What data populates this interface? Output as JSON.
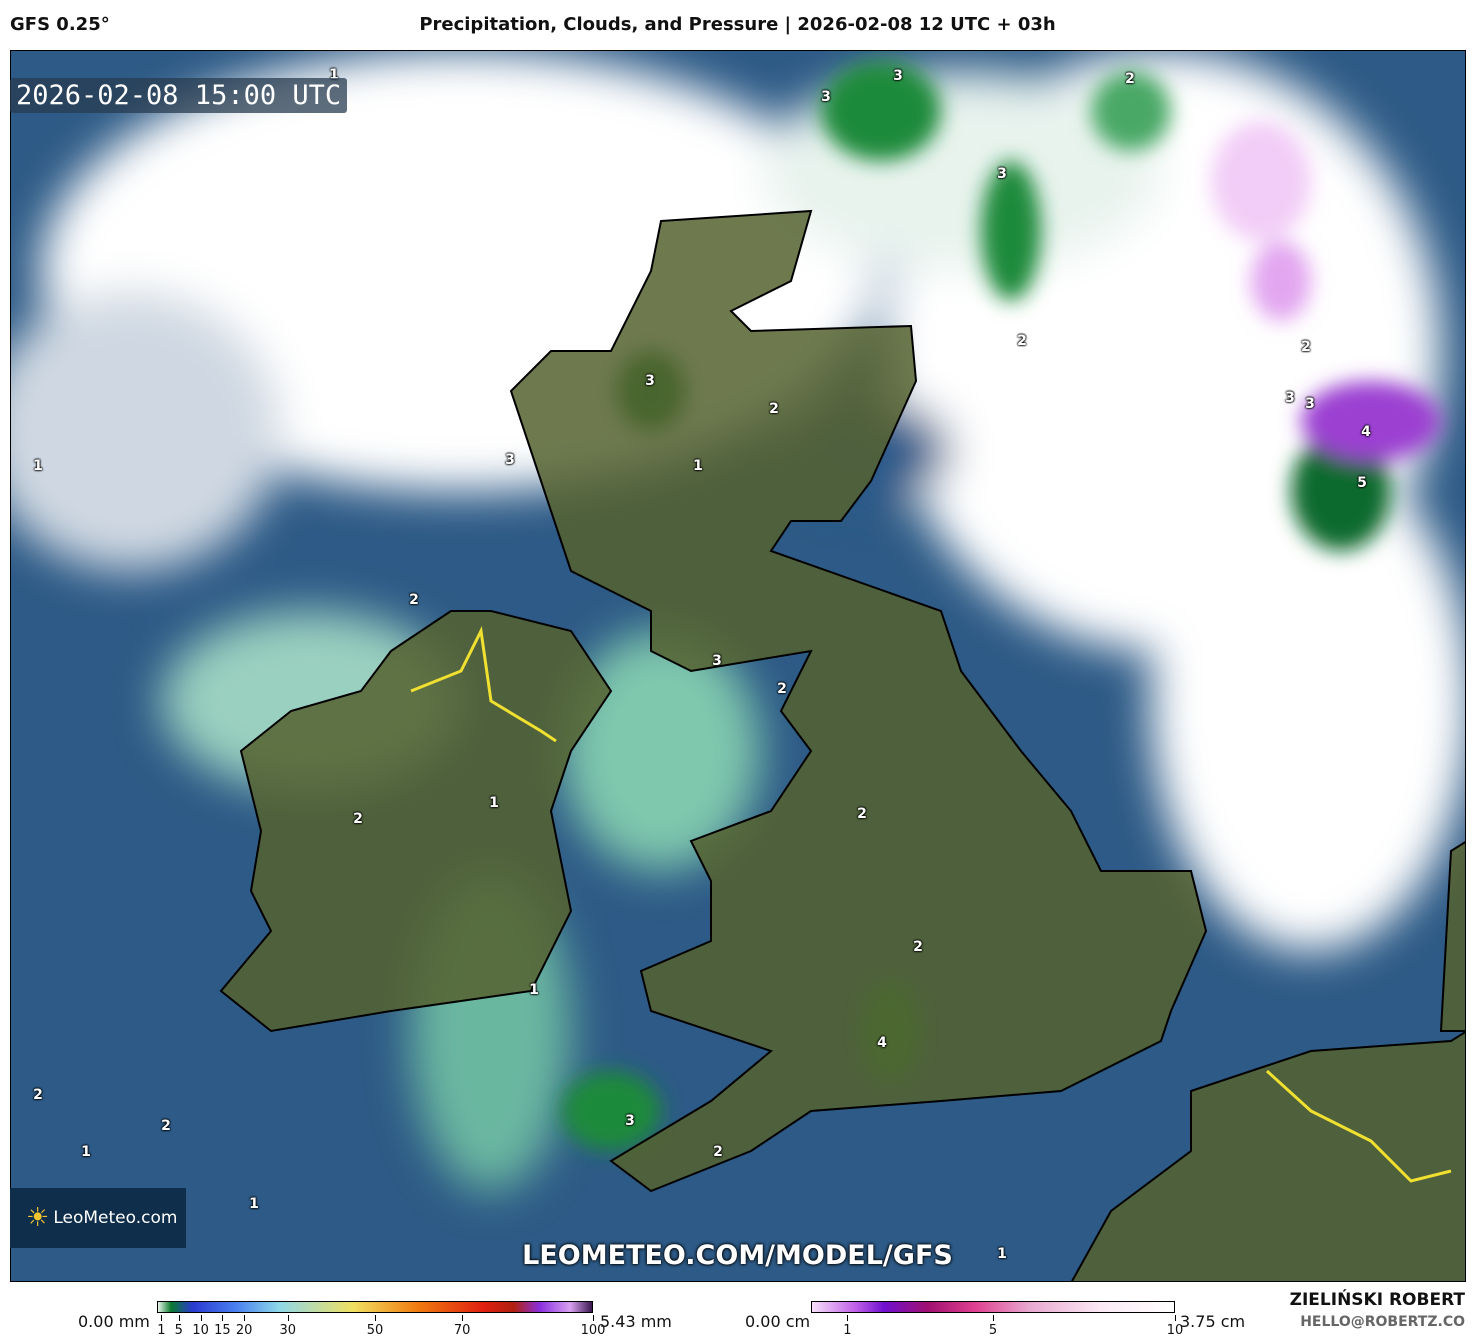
{
  "header": {
    "model": "GFS 0.25°",
    "title": "Precipitation, Clouds, and Pressure | 2026-02-08 12 UTC + 03h"
  },
  "map": {
    "timestamp": "2026-02-08 15:00 UTC",
    "watermark_url": "LEOMETEO.COM/MODEL/GFS",
    "logo": "LeoMeteo.com",
    "precip_labels": [
      "1",
      "3",
      "3",
      "2",
      "3",
      "2",
      "3",
      "1",
      "3",
      "2",
      "1",
      "2",
      "3",
      "3",
      "4",
      "5",
      "2",
      "3",
      "2",
      "1",
      "2",
      "2",
      "1",
      "2",
      "4",
      "1",
      "3",
      "2",
      "2",
      "1",
      "2",
      "1"
    ],
    "colors": {
      "sea": "#2d5a86",
      "land": "#4e5b2e",
      "cloud": "#ffffff",
      "rain": "#0a7a2e",
      "snow": "#9b3fd1",
      "border_yellow": "#f0e030"
    }
  },
  "legend": {
    "precip": {
      "min": "0.00 mm",
      "max": "5.43 mm",
      "ticks": [
        "1",
        "5",
        "10",
        "15",
        "20",
        "30",
        "50",
        "70",
        "100"
      ]
    },
    "snow": {
      "min": "0.00 cm",
      "max": "3.75 cm",
      "ticks": [
        "1",
        "5",
        "10"
      ]
    }
  },
  "credits": {
    "author": "ZIELIŃSKI ROBERT",
    "email": "HELLO@ROBERTZ.CO"
  }
}
